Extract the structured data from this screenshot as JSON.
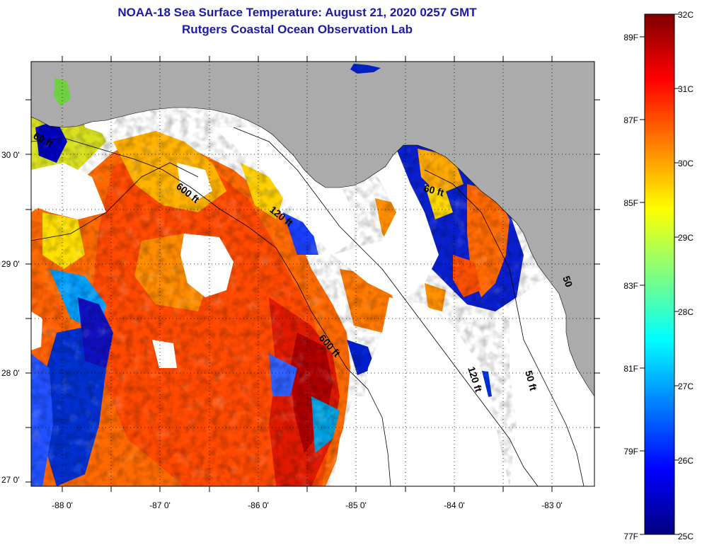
{
  "title": {
    "line1": "NOAA-18 Sea Surface Temperature:  August 21, 2020 0257 GMT",
    "line2": "Rutgers Coastal Ocean Observation Lab"
  },
  "map": {
    "lat_ticks": [
      "30 0'",
      "29 0'",
      "28 0'",
      "27 0'"
    ],
    "lon_ticks": [
      "-88 0'",
      "-87 0'",
      "-86 0'",
      "-85 0'",
      "-84 0'",
      "-83 0'"
    ],
    "lat_range": [
      26.98,
      30.85
    ],
    "lon_range": [
      -88.35,
      -82.45
    ],
    "depth_labels": [
      "60 ft",
      "600 ft",
      "120 ft",
      "600 ft",
      "60 ft",
      "120 ft",
      "50 ft",
      "50"
    ]
  },
  "colorbar": {
    "celsius_labels": [
      "32C",
      "31C",
      "30C",
      "29C",
      "28C",
      "27C",
      "26C",
      "25C"
    ],
    "fahrenheit_labels": [
      "89F",
      "87F",
      "85F",
      "83F",
      "81F",
      "79F",
      "77F"
    ],
    "celsius_range": [
      25,
      32
    ],
    "colors": [
      "#00007f",
      "#0000ff",
      "#007fff",
      "#00ffff",
      "#7fff7f",
      "#ffff00",
      "#ff7f00",
      "#ff0000",
      "#7f0000"
    ]
  },
  "colors": {
    "land": "#ababab",
    "cloud": "#ffffff",
    "title": "#1a1aa8"
  }
}
